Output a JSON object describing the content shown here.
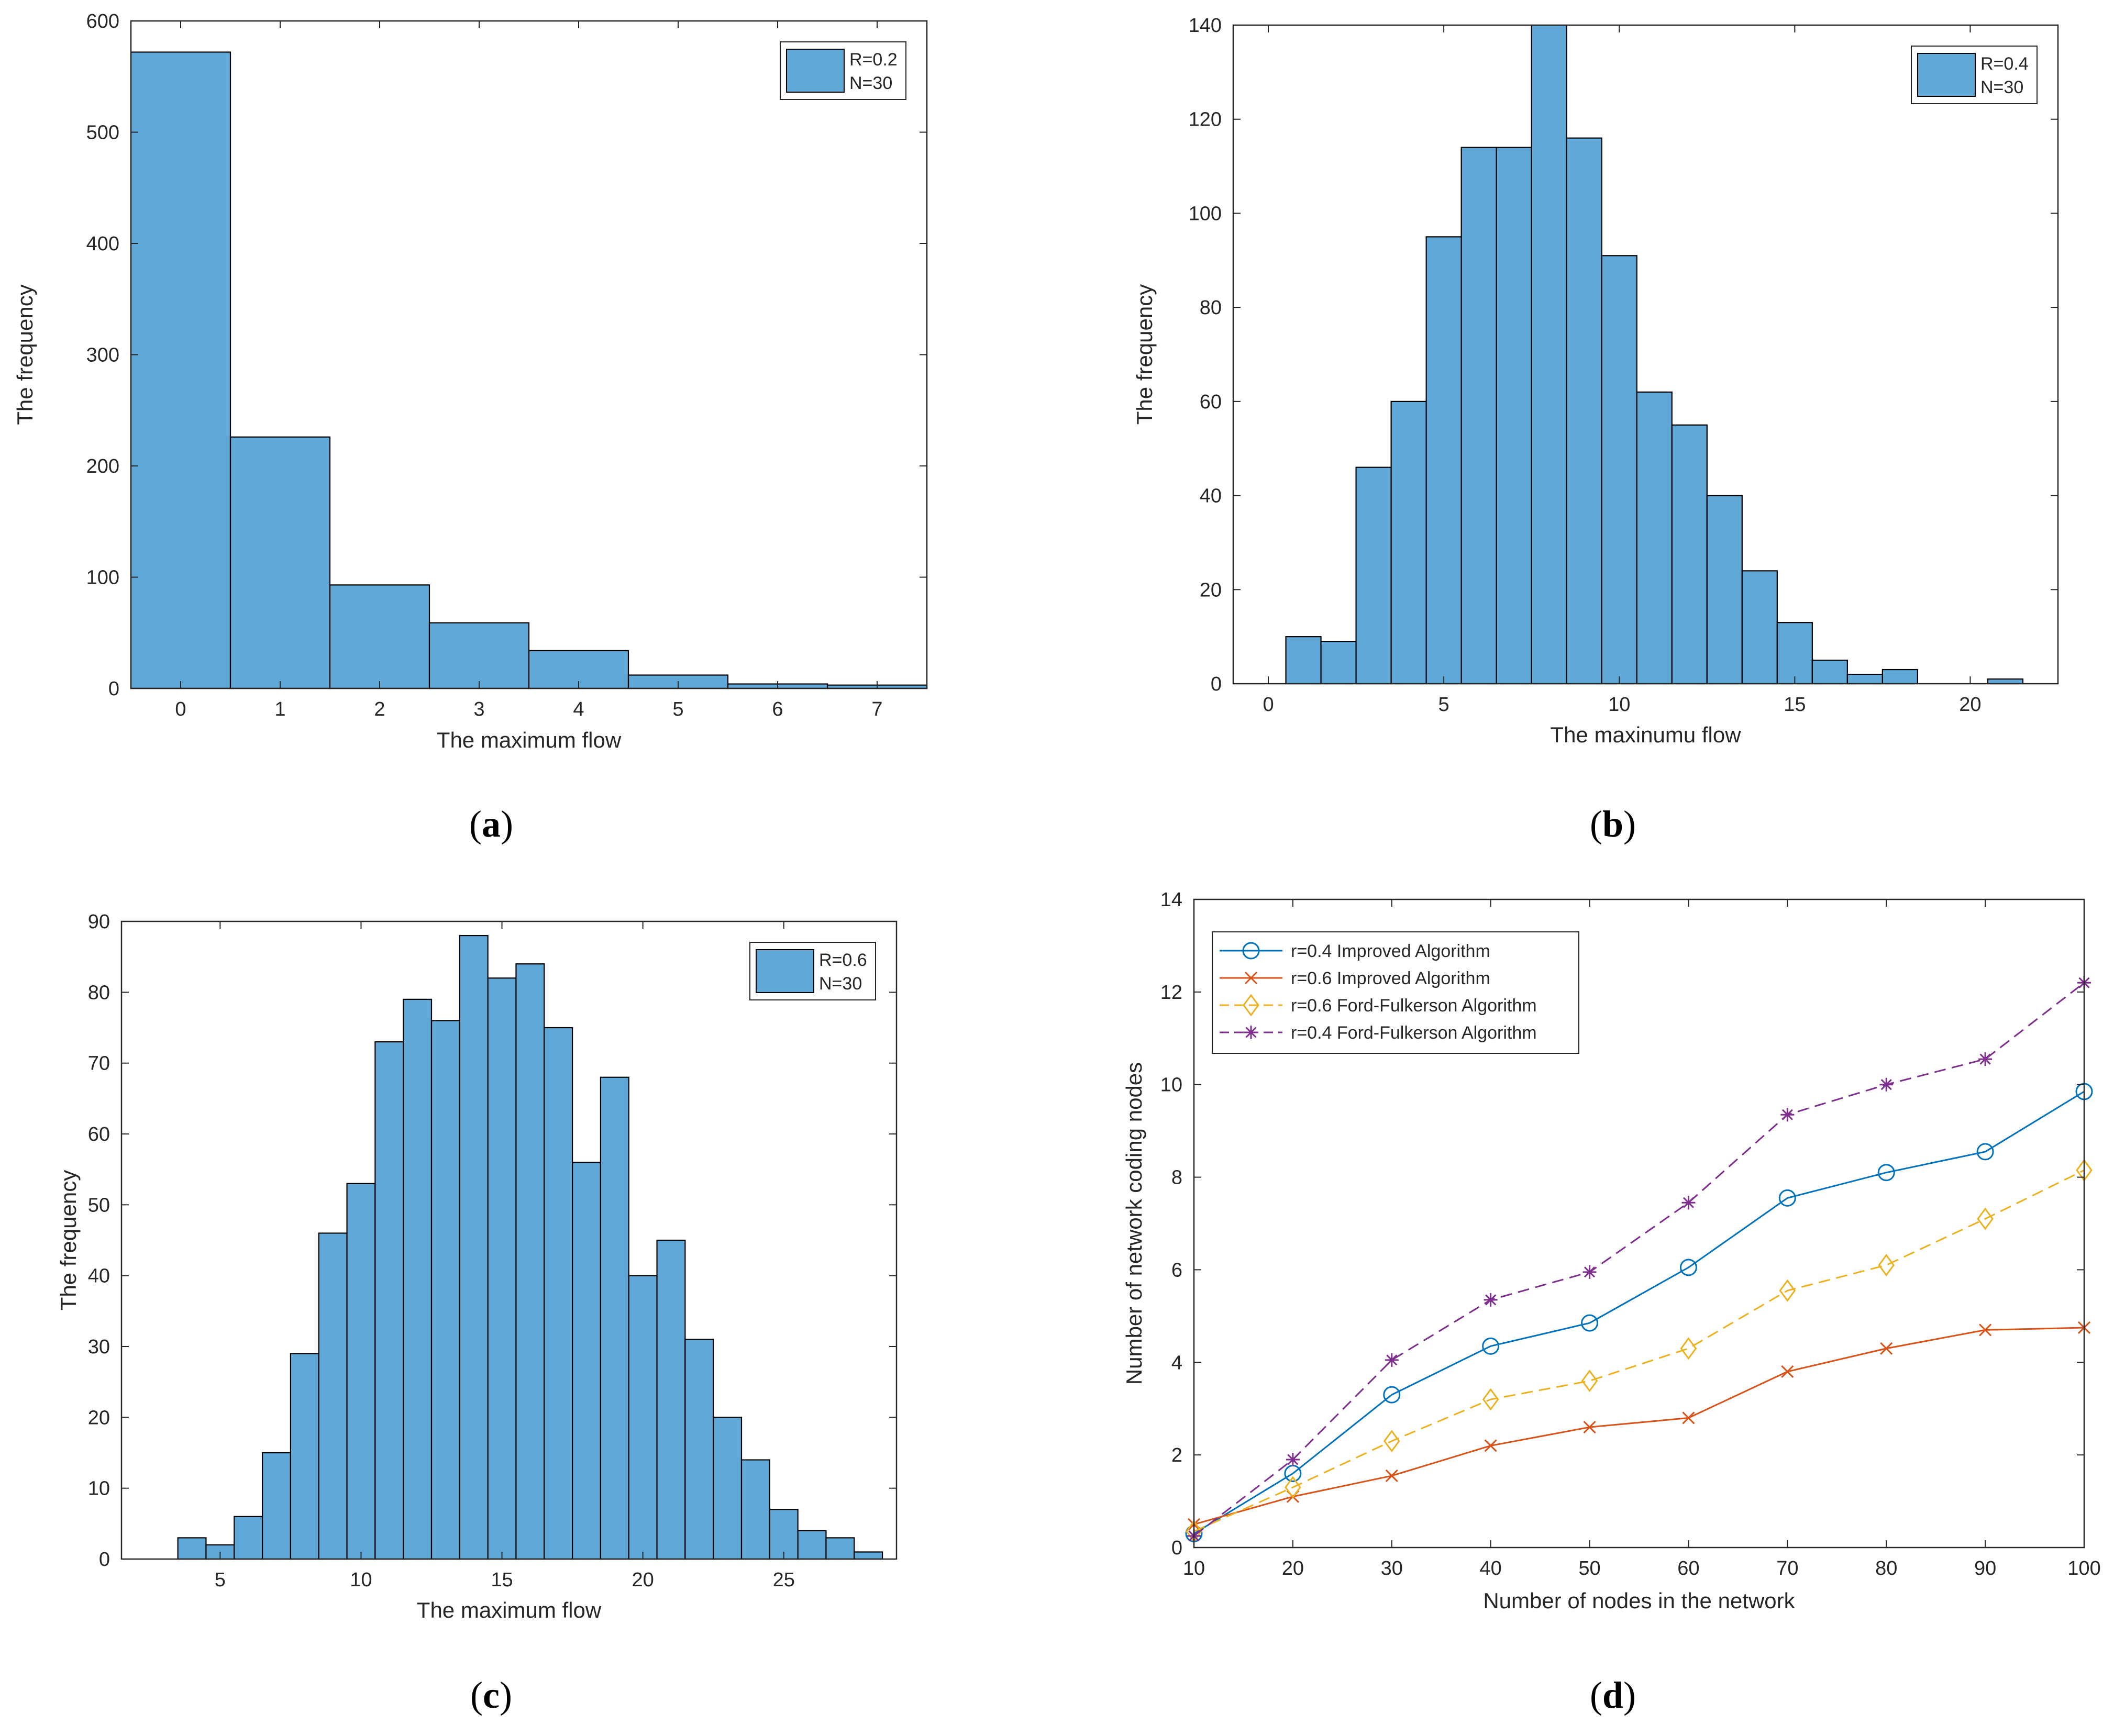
{
  "colors": {
    "bar_fill": "#5fa8d8",
    "bar_edge": "#000000",
    "axis": "#262626",
    "series_1": "#0072bd",
    "series_2": "#d95319",
    "series_3": "#edb120",
    "series_4": "#7e2f8e"
  },
  "captions": {
    "a": "a",
    "b": "b",
    "c": "c",
    "d": "d"
  },
  "chart_data": [
    {
      "id": "a",
      "type": "bar",
      "xlabel": "The maximum flow",
      "ylabel": "The frequency",
      "xlim": [
        -0.5,
        7.5
      ],
      "ylim": [
        0,
        600
      ],
      "xticks": [
        0,
        1,
        2,
        3,
        4,
        5,
        6,
        7
      ],
      "yticks": [
        0,
        100,
        200,
        300,
        400,
        500,
        600
      ],
      "bin_width": 1,
      "bin_centers": [
        0,
        1,
        2,
        3,
        4,
        5,
        6,
        7
      ],
      "values": [
        572,
        226,
        93,
        59,
        34,
        12,
        4,
        3
      ],
      "legend": [
        "R=0.2",
        "N=30"
      ],
      "legend_position": "top-right"
    },
    {
      "id": "b",
      "type": "bar",
      "xlabel": "The maxinumu flow",
      "ylabel": "The frequency",
      "xlim": [
        -1,
        22.5
      ],
      "ylim": [
        0,
        140
      ],
      "xticks": [
        0,
        5,
        10,
        15,
        20
      ],
      "yticks": [
        0,
        20,
        40,
        60,
        80,
        100,
        120,
        140
      ],
      "bin_width": 1,
      "bin_centers": [
        1,
        2,
        3,
        4,
        5,
        6,
        7,
        8,
        9,
        10,
        11,
        12,
        13,
        14,
        15,
        16,
        17,
        18,
        19,
        20,
        21
      ],
      "values": [
        10,
        9,
        46,
        60,
        95,
        114,
        114,
        140,
        116,
        91,
        62,
        55,
        40,
        24,
        13,
        5,
        2,
        3,
        0,
        0,
        1
      ],
      "legend": [
        "R=0.4",
        "N=30"
      ],
      "legend_position": "top-right"
    },
    {
      "id": "c",
      "type": "bar",
      "xlabel": "The maximum  flow",
      "ylabel": "The frequency",
      "xlim": [
        1.5,
        29
      ],
      "ylim": [
        0,
        90
      ],
      "xticks": [
        5,
        10,
        15,
        20,
        25
      ],
      "yticks": [
        0,
        10,
        20,
        30,
        40,
        50,
        60,
        70,
        80,
        90
      ],
      "bin_width": 1,
      "bin_centers": [
        4,
        5,
        6,
        7,
        8,
        9,
        10,
        11,
        12,
        13,
        14,
        15,
        16,
        17,
        18,
        19,
        20,
        21,
        22,
        23,
        24,
        25,
        26,
        27,
        28
      ],
      "values": [
        3,
        2,
        6,
        15,
        29,
        46,
        53,
        73,
        79,
        76,
        88,
        82,
        84,
        75,
        56,
        68,
        40,
        45,
        31,
        20,
        14,
        7,
        4,
        3,
        1
      ],
      "legend": [
        "R=0.6",
        "N=30"
      ],
      "legend_position": "top-right"
    },
    {
      "id": "d",
      "type": "line",
      "xlabel": "Number of nodes in the network",
      "ylabel": "Number of network coding nodes",
      "xlim": [
        10,
        100
      ],
      "ylim": [
        0,
        14
      ],
      "xticks": [
        10,
        20,
        30,
        40,
        50,
        60,
        70,
        80,
        90,
        100
      ],
      "yticks": [
        0,
        2,
        4,
        6,
        8,
        10,
        12,
        14
      ],
      "x": [
        10,
        20,
        30,
        40,
        50,
        60,
        70,
        80,
        90,
        100
      ],
      "series": [
        {
          "name": "r=0.4 Improved Algorithm",
          "marker": "circle",
          "dash": "solid",
          "values": [
            0.3,
            1.6,
            3.3,
            4.35,
            4.85,
            6.05,
            7.55,
            8.1,
            8.55,
            9.85
          ]
        },
        {
          "name": "r=0.6 Improved Algorithm",
          "marker": "x",
          "dash": "solid",
          "values": [
            0.5,
            1.1,
            1.55,
            2.2,
            2.6,
            2.8,
            3.8,
            4.3,
            4.7,
            4.75
          ]
        },
        {
          "name": "r=0.6 Ford-Fulkerson Algorithm",
          "marker": "diamond",
          "dash": "dashed",
          "values": [
            0.35,
            1.3,
            2.3,
            3.2,
            3.6,
            4.3,
            5.55,
            6.1,
            7.1,
            8.15
          ]
        },
        {
          "name": "r=0.4 Ford-Fulkerson Algorithm",
          "marker": "star",
          "dash": "dashed",
          "values": [
            0.25,
            1.9,
            4.05,
            5.35,
            5.95,
            7.45,
            9.35,
            10.0,
            10.55,
            12.2
          ]
        }
      ],
      "legend_position": "top-left"
    }
  ]
}
